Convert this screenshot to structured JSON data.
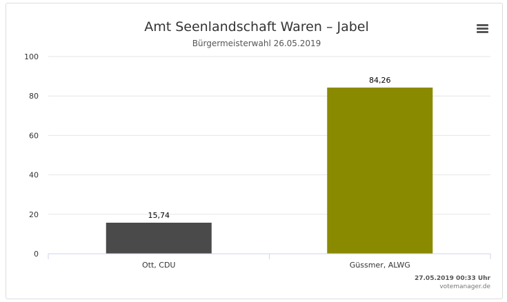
{
  "menu_icon": "hamburger-menu-icon",
  "chart_data": {
    "type": "bar",
    "title": "Amt Seenlandschaft Waren – Jabel",
    "subtitle": "Bürgermeisterwahl 26.05.2019",
    "categories": [
      "Ott, CDU",
      "Güssmer, ALWG"
    ],
    "values": [
      15.74,
      84.26
    ],
    "value_labels": [
      "15,74",
      "84,26"
    ],
    "colors": [
      "#4a4a4a",
      "#8a8a00"
    ],
    "ylim": [
      0,
      100
    ],
    "yticks": [
      "0",
      "20",
      "40",
      "60",
      "80",
      "100"
    ],
    "grid": true,
    "legend": "none"
  },
  "footer": {
    "timestamp": "27.05.2019 00:33 Uhr",
    "source": "votemanager.de"
  }
}
